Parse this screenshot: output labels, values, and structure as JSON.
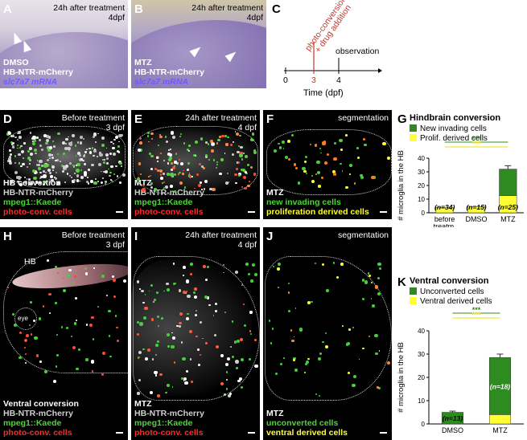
{
  "panels": {
    "A": {
      "label": "A",
      "header": [
        "24h after treatment",
        "4dpf"
      ],
      "lines": [
        "DMSO",
        "HB-NTR-mCherry",
        "slc7a7 mRNA"
      ]
    },
    "B": {
      "label": "B",
      "header": [
        "24h after treatment",
        "4dpf"
      ],
      "lines": [
        "MTZ",
        "HB-NTR-mCherry",
        "slc7a7 mRNA"
      ]
    },
    "C": {
      "label": "C",
      "event1": [
        "photo-conversion",
        "+ drug addition"
      ],
      "event2": "observation",
      "ticks": [
        "0",
        "3",
        "4"
      ],
      "xlabel": "Time (dpf)"
    },
    "D": {
      "label": "D",
      "header": [
        "Before treatment",
        "3 dpf"
      ],
      "lines": [
        "HB convertion",
        "HB-NTR-mCherry",
        "mpeg1::Kaede",
        "photo-conv. cells"
      ]
    },
    "E": {
      "label": "E",
      "header": [
        "24h after treatment",
        "4 dpf"
      ],
      "lines": [
        "MTZ",
        "HB-NTR-mCherry",
        "mpeg1::Kaede",
        "photo-conv. cells"
      ]
    },
    "F": {
      "label": "F",
      "header": [
        "segmentation"
      ],
      "lines": [
        "MTZ",
        "new invading cells",
        "proliferation derived cells"
      ]
    },
    "H": {
      "label": "H",
      "header": [
        "Before treatment",
        "3 dpf"
      ],
      "inset": [
        "HB",
        "eye"
      ],
      "lines": [
        "Ventral conversion",
        "HB-NTR-mCherry",
        "mpeg1::Kaede",
        "photo-conv. cells"
      ]
    },
    "I": {
      "label": "I",
      "header": [
        "24h after treatment",
        "4 dpf"
      ],
      "lines": [
        "MTZ",
        "HB-NTR-mCherry",
        "mpeg1::Kaede",
        "photo-conv. cells"
      ]
    },
    "J": {
      "label": "J",
      "header": [
        "segmentation"
      ],
      "lines": [
        "MTZ",
        "unconverted cells",
        "ventral derived cells"
      ]
    }
  },
  "chart_data": [
    {
      "panel": "G",
      "type": "bar",
      "title": "Hindbrain conversion",
      "ylabel": "# microglia in the HB",
      "ylim": [
        0,
        40
      ],
      "yticks": [
        0,
        10,
        20,
        30,
        40
      ],
      "categories": [
        "before treatm.",
        "DMSO",
        "MTZ"
      ],
      "series": [
        {
          "name": "Prolif. derived cells",
          "color": "#ffff33",
          "values": [
            4,
            4.5,
            12.5
          ],
          "err": [
            0,
            0,
            1.5
          ]
        },
        {
          "name": "New invading cells",
          "color": "#2e8b1f",
          "values": [
            0,
            0,
            19.5
          ],
          "err": [
            0,
            0,
            2.5
          ]
        }
      ],
      "n_labels": [
        "(n=34)",
        "(n=15)",
        "(n=25)"
      ],
      "significance": [
        "***",
        "***"
      ],
      "legend": "top"
    },
    {
      "panel": "K",
      "type": "bar",
      "title": "Ventral conversion",
      "ylabel": "# microglia in the HB",
      "ylim": [
        0,
        40
      ],
      "yticks": [
        0,
        10,
        20,
        30,
        40
      ],
      "categories": [
        "DMSO",
        "MTZ"
      ],
      "series": [
        {
          "name": "Ventral derived cells",
          "color": "#ffff33",
          "values": [
            0,
            4
          ],
          "err": [
            0,
            0
          ]
        },
        {
          "name": "Unconverted cells",
          "color": "#2e8b1f",
          "values": [
            5,
            24.5
          ],
          "err": [
            0.5,
            1.5
          ]
        }
      ],
      "n_labels": [
        "(n=13)",
        "(n=18)"
      ],
      "significance": [
        "***",
        "***"
      ],
      "legend": "top"
    }
  ]
}
